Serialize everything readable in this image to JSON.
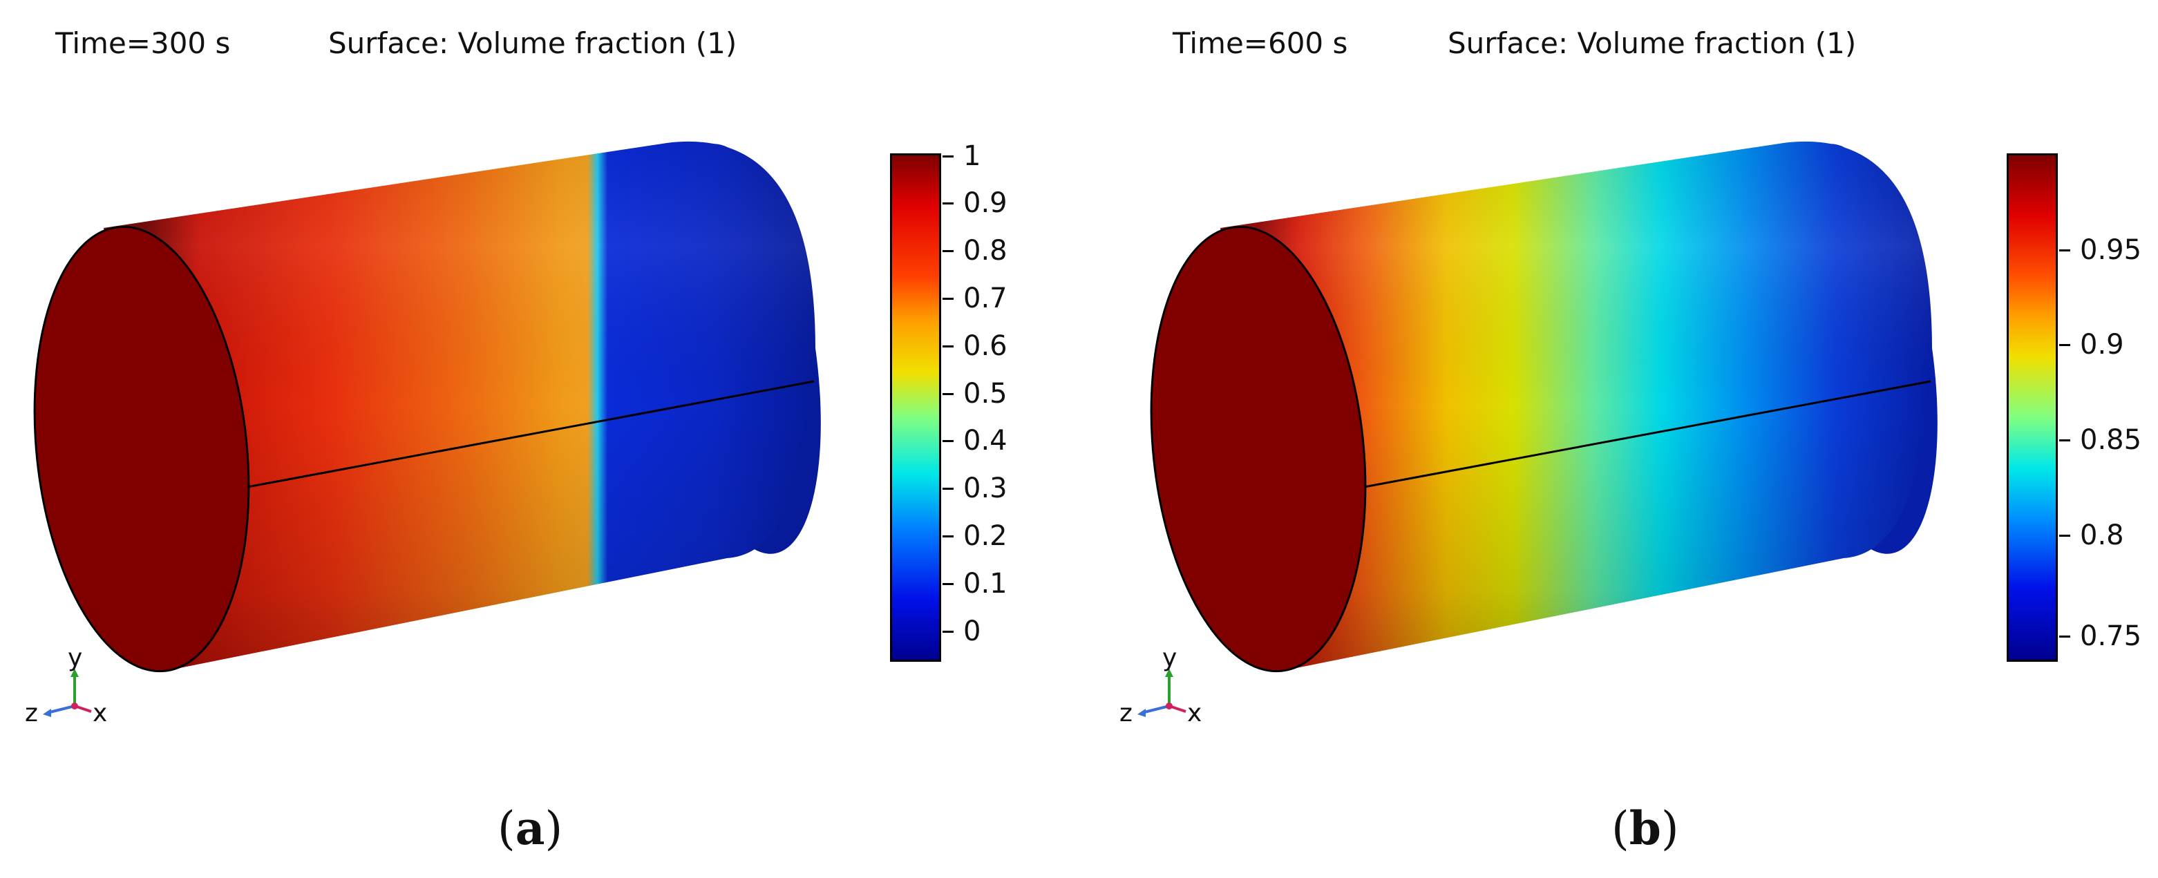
{
  "panels": [
    {
      "time_label": "Time=300 s",
      "surface_label": "Surface: Volume fraction (1)",
      "colorbar_ticks": [
        "1",
        "0.9",
        "0.8",
        "0.7",
        "0.6",
        "0.5",
        "0.4",
        "0.3",
        "0.2",
        "0.1",
        "0"
      ],
      "caption_open": "(",
      "caption_letter": "a",
      "caption_close": ")",
      "axis_labels": {
        "y": "y",
        "z": "z",
        "x": "x"
      }
    },
    {
      "time_label": "Time=600 s",
      "surface_label": "Surface: Volume fraction (1)",
      "colorbar_ticks": [
        "0.95",
        "0.9",
        "0.85",
        "0.8",
        "0.75"
      ],
      "caption_open": "(",
      "caption_letter": "b",
      "caption_close": ")",
      "axis_labels": {
        "y": "y",
        "z": "z",
        "x": "x"
      }
    }
  ],
  "colors": {
    "dark_red": "#800000",
    "red": "#e8200d",
    "orange": "#f08a12",
    "yellow": "#f0e000",
    "cyan": "#00e8e8",
    "blue": "#0a2bd8",
    "dark_blue": "#00008f"
  }
}
